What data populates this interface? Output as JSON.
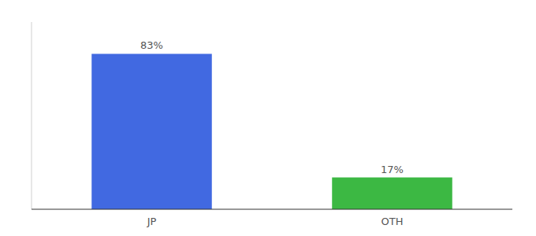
{
  "chart_data": {
    "type": "bar",
    "categories": [
      "JP",
      "OTH"
    ],
    "values": [
      83,
      17
    ],
    "colors": [
      "#4169E1",
      "#3CB843"
    ],
    "value_labels": [
      "83%",
      "17%"
    ],
    "data_labels": true,
    "ylim": [
      0,
      100
    ],
    "tick_labels": "x"
  }
}
